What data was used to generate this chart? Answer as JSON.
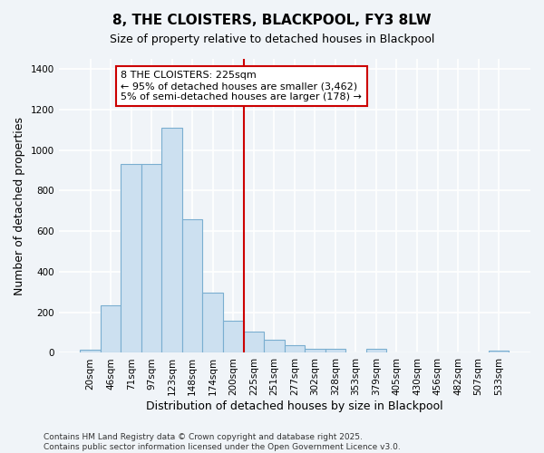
{
  "title": "8, THE CLOISTERS, BLACKPOOL, FY3 8LW",
  "subtitle": "Size of property relative to detached houses in Blackpool",
  "xlabel": "Distribution of detached houses by size in Blackpool",
  "ylabel": "Number of detached properties",
  "categories": [
    "20sqm",
    "46sqm",
    "71sqm",
    "97sqm",
    "123sqm",
    "148sqm",
    "174sqm",
    "200sqm",
    "225sqm",
    "251sqm",
    "277sqm",
    "302sqm",
    "328sqm",
    "353sqm",
    "379sqm",
    "405sqm",
    "430sqm",
    "456sqm",
    "482sqm",
    "507sqm",
    "533sqm"
  ],
  "values": [
    15,
    235,
    930,
    930,
    1110,
    660,
    295,
    160,
    105,
    65,
    40,
    20,
    20,
    0,
    20,
    0,
    0,
    0,
    0,
    0,
    10
  ],
  "bar_color": "#cce0f0",
  "bar_edge_color": "#7aaed0",
  "vline_color": "#cc0000",
  "annotation_text": "8 THE CLOISTERS: 225sqm\n← 95% of detached houses are smaller (3,462)\n5% of semi-detached houses are larger (178) →",
  "annotation_box_color": "#ffffff",
  "annotation_box_edge": "#cc0000",
  "ylim": [
    0,
    1450
  ],
  "yticks": [
    0,
    200,
    400,
    600,
    800,
    1000,
    1200,
    1400
  ],
  "footer": "Contains HM Land Registry data © Crown copyright and database right 2025.\nContains public sector information licensed under the Open Government Licence v3.0.",
  "bg_color": "#f0f4f8",
  "grid_color": "#ffffff",
  "title_fontsize": 11,
  "subtitle_fontsize": 9,
  "axis_label_fontsize": 9,
  "tick_fontsize": 7.5,
  "annotation_fontsize": 8,
  "footer_fontsize": 6.5
}
